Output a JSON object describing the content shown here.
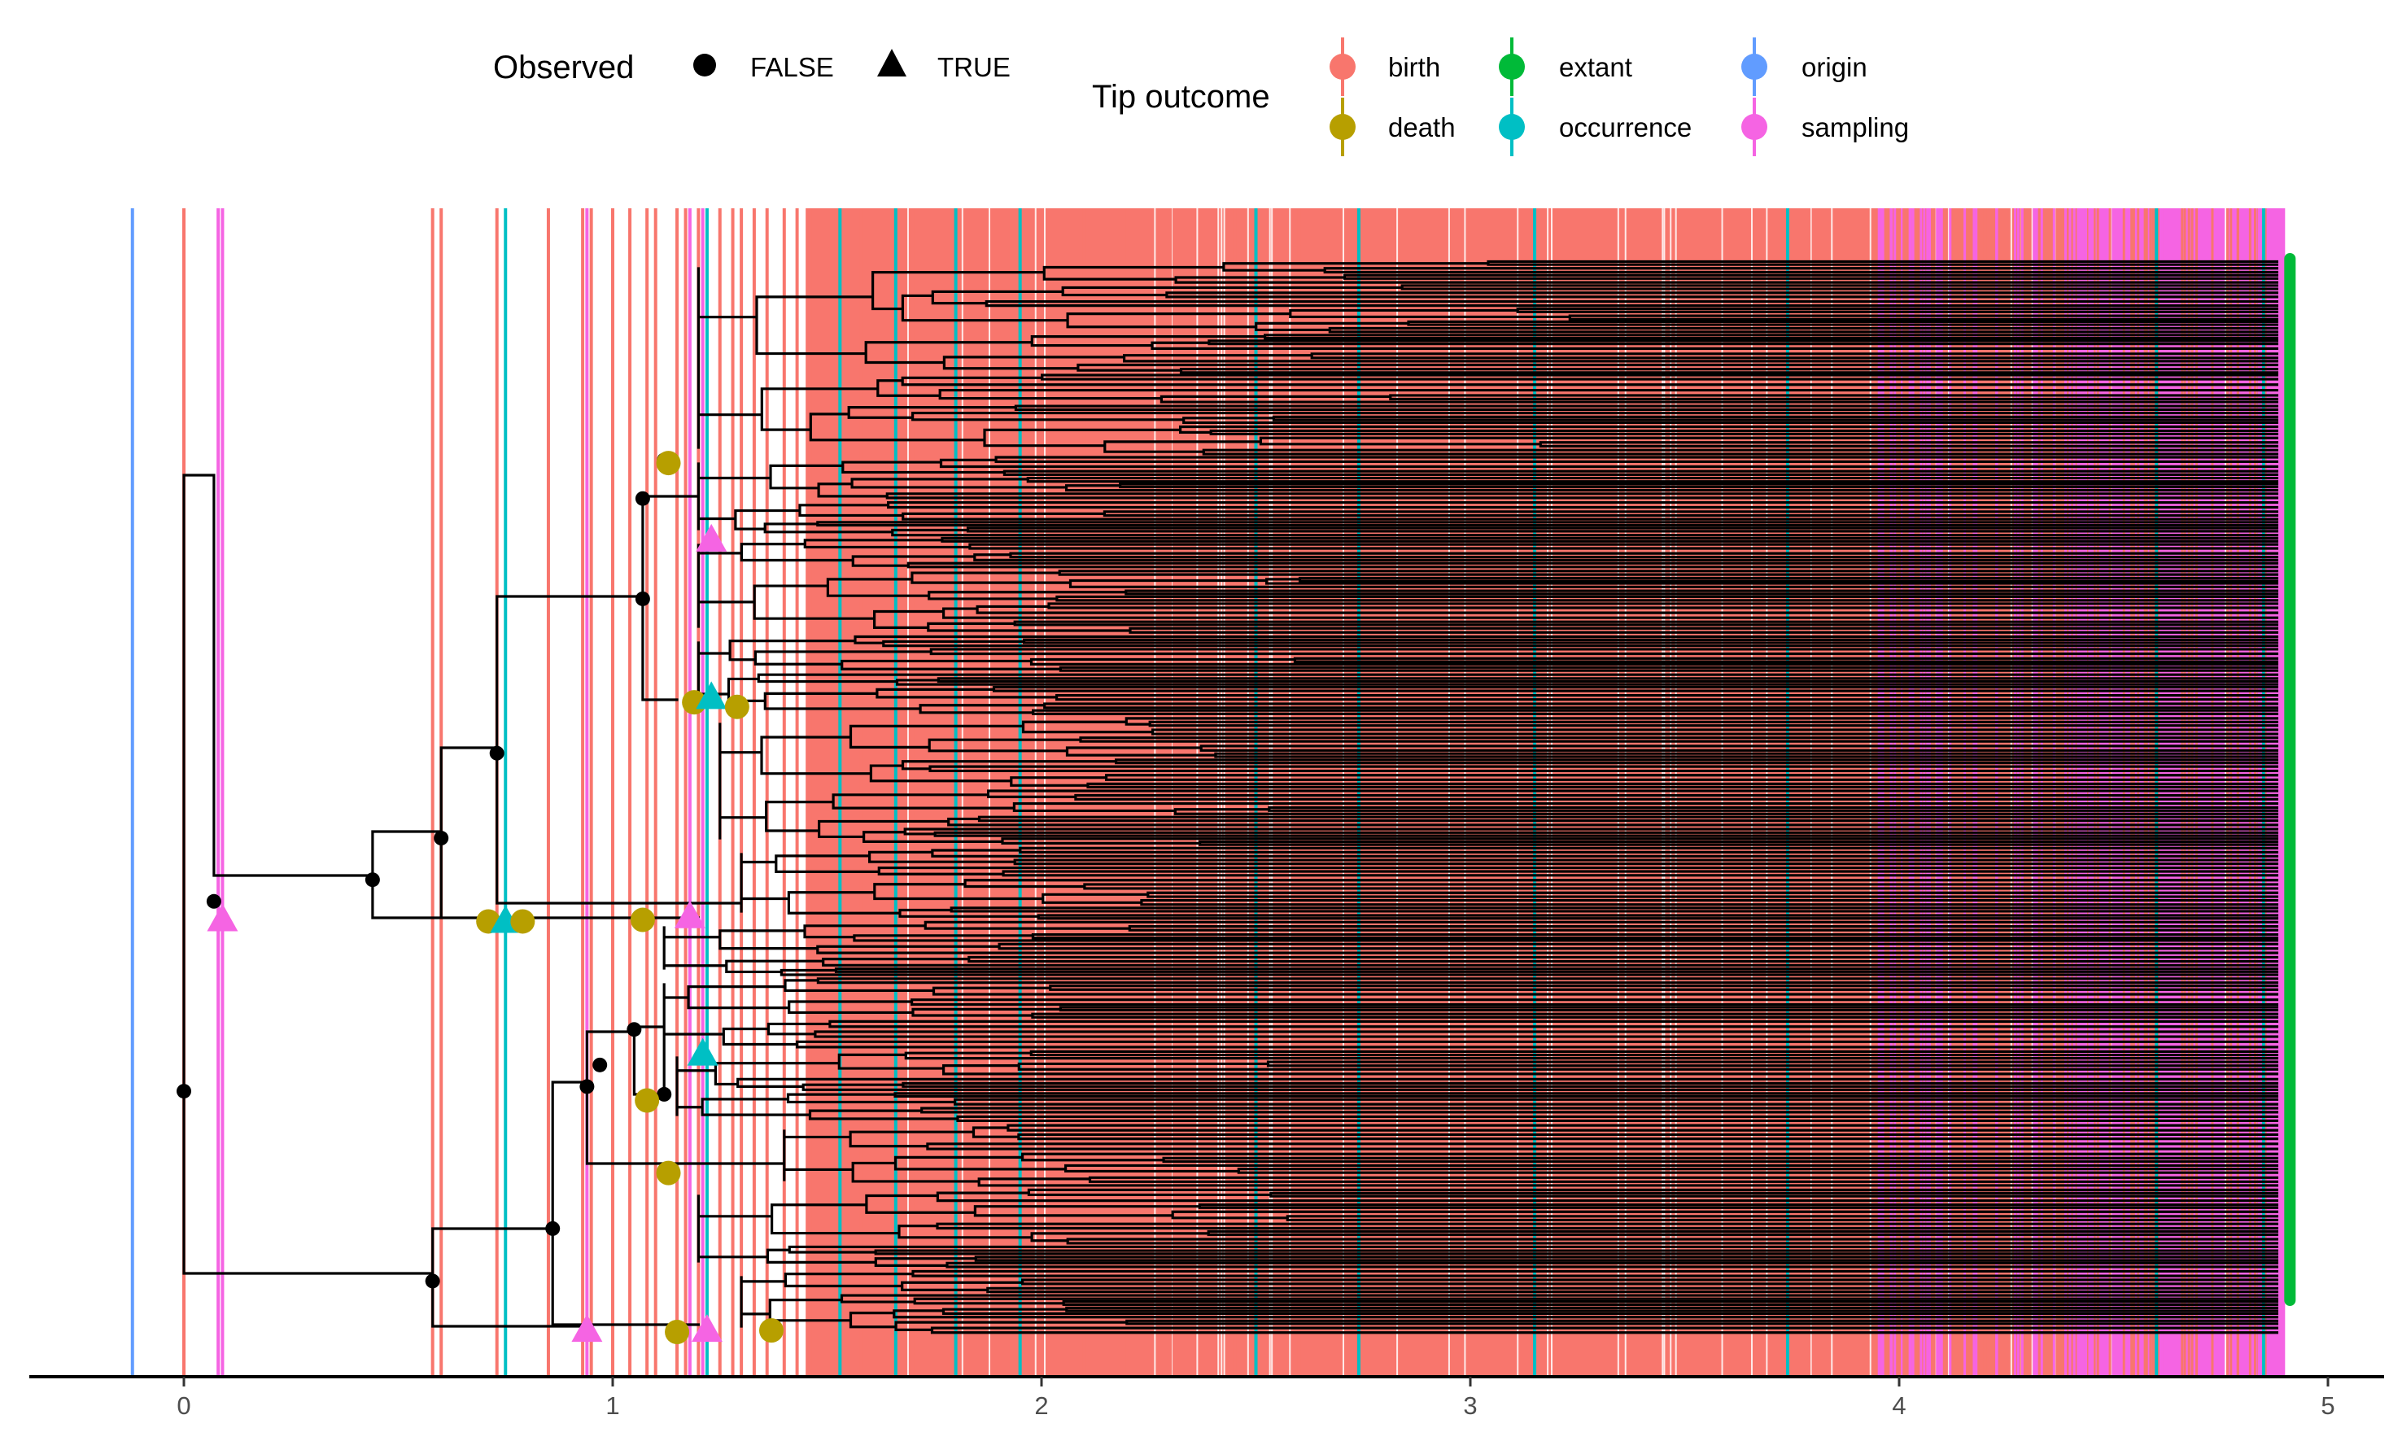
{
  "chart_data": {
    "type": "phylogenetic-tree",
    "title": "",
    "xlabel": "",
    "ylabel": "",
    "xlim": [
      -0.36,
      5.1
    ],
    "x_ticks": [
      0,
      1,
      2,
      3,
      4,
      5
    ],
    "x_tick_labels": [
      "0",
      "1",
      "2",
      "3",
      "4",
      "5"
    ],
    "present_time": 4.9,
    "grid": false,
    "legend_position": "top",
    "legends": [
      {
        "title": "Observed",
        "entries": [
          {
            "label": "FALSE",
            "shape": "circle"
          },
          {
            "label": "TRUE",
            "shape": "triangle"
          }
        ]
      },
      {
        "title": "Tip outcome",
        "entries": [
          {
            "label": "birth",
            "color": "#F8766D"
          },
          {
            "label": "death",
            "color": "#B79F00"
          },
          {
            "label": "extant",
            "color": "#00BA38"
          },
          {
            "label": "occurrence",
            "color": "#00BFC4"
          },
          {
            "label": "origin",
            "color": "#619CFF"
          },
          {
            "label": "sampling",
            "color": "#F564E3"
          }
        ]
      }
    ],
    "event_lines": {
      "origin": [
        -0.12
      ],
      "birth": [
        0.0,
        0.58,
        0.6,
        0.73,
        0.85,
        0.93,
        0.95,
        1.0,
        1.04,
        1.08,
        1.1,
        1.15,
        1.17,
        1.2,
        1.25,
        1.28,
        1.3,
        1.33,
        1.36,
        1.4,
        1.43,
        1.46,
        1.52,
        1.58,
        1.62,
        1.7,
        1.78,
        1.86,
        1.92,
        2.0,
        2.1,
        2.2,
        2.3,
        2.45,
        2.6,
        2.75,
        2.9,
        3.05,
        3.2,
        3.4,
        3.6,
        3.8,
        4.0,
        4.2
      ],
      "occurrence": [
        0.75,
        1.22,
        1.53,
        1.66,
        1.8,
        1.95,
        2.5,
        2.74,
        3.15,
        3.74,
        4.6,
        4.85
      ],
      "sampling": [
        0.08,
        0.09,
        0.94,
        1.18,
        1.21,
        4.45,
        4.62,
        4.75,
        4.84
      ]
    },
    "backbone_nodes": [
      {
        "x": 0.0,
        "y": 707
      },
      {
        "x": 0.07,
        "y": 584
      },
      {
        "x": 0.44,
        "y": 570
      },
      {
        "x": 0.6,
        "y": 543
      },
      {
        "x": 0.73,
        "y": 488
      },
      {
        "x": 1.07,
        "y": 388
      },
      {
        "x": 1.07,
        "y": 323
      },
      {
        "x": 1.12,
        "y": 298
      },
      {
        "x": 0.58,
        "y": 830
      },
      {
        "x": 0.86,
        "y": 796
      },
      {
        "x": 0.94,
        "y": 704
      },
      {
        "x": 0.97,
        "y": 690
      },
      {
        "x": 1.05,
        "y": 667
      },
      {
        "x": 1.12,
        "y": 709
      }
    ],
    "tip_markers": [
      {
        "x": 0.09,
        "y": 596,
        "outcome": "sampling",
        "observed": "TRUE"
      },
      {
        "x": 0.71,
        "y": 597,
        "outcome": "death",
        "observed": "FALSE"
      },
      {
        "x": 0.75,
        "y": 597,
        "outcome": "occurrence",
        "observed": "TRUE"
      },
      {
        "x": 0.79,
        "y": 597,
        "outcome": "death",
        "observed": "FALSE"
      },
      {
        "x": 1.07,
        "y": 596,
        "outcome": "death",
        "observed": "FALSE"
      },
      {
        "x": 1.18,
        "y": 594,
        "outcome": "sampling",
        "observed": "TRUE"
      },
      {
        "x": 1.13,
        "y": 300,
        "outcome": "death",
        "observed": "FALSE"
      },
      {
        "x": 1.23,
        "y": 350,
        "outcome": "sampling",
        "observed": "TRUE"
      },
      {
        "x": 1.19,
        "y": 455,
        "outcome": "death",
        "observed": "FALSE"
      },
      {
        "x": 1.23,
        "y": 452,
        "outcome": "occurrence",
        "observed": "TRUE"
      },
      {
        "x": 1.29,
        "y": 458,
        "outcome": "death",
        "observed": "FALSE"
      },
      {
        "x": 1.21,
        "y": 683,
        "outcome": "occurrence",
        "observed": "TRUE"
      },
      {
        "x": 1.08,
        "y": 713,
        "outcome": "death",
        "observed": "FALSE"
      },
      {
        "x": 1.13,
        "y": 760,
        "outcome": "death",
        "observed": "FALSE"
      },
      {
        "x": 0.94,
        "y": 862,
        "outcome": "sampling",
        "observed": "TRUE"
      },
      {
        "x": 1.15,
        "y": 863,
        "outcome": "death",
        "observed": "FALSE"
      },
      {
        "x": 1.22,
        "y": 862,
        "outcome": "sampling",
        "observed": "TRUE"
      },
      {
        "x": 1.37,
        "y": 862,
        "outcome": "death",
        "observed": "FALSE"
      }
    ]
  }
}
